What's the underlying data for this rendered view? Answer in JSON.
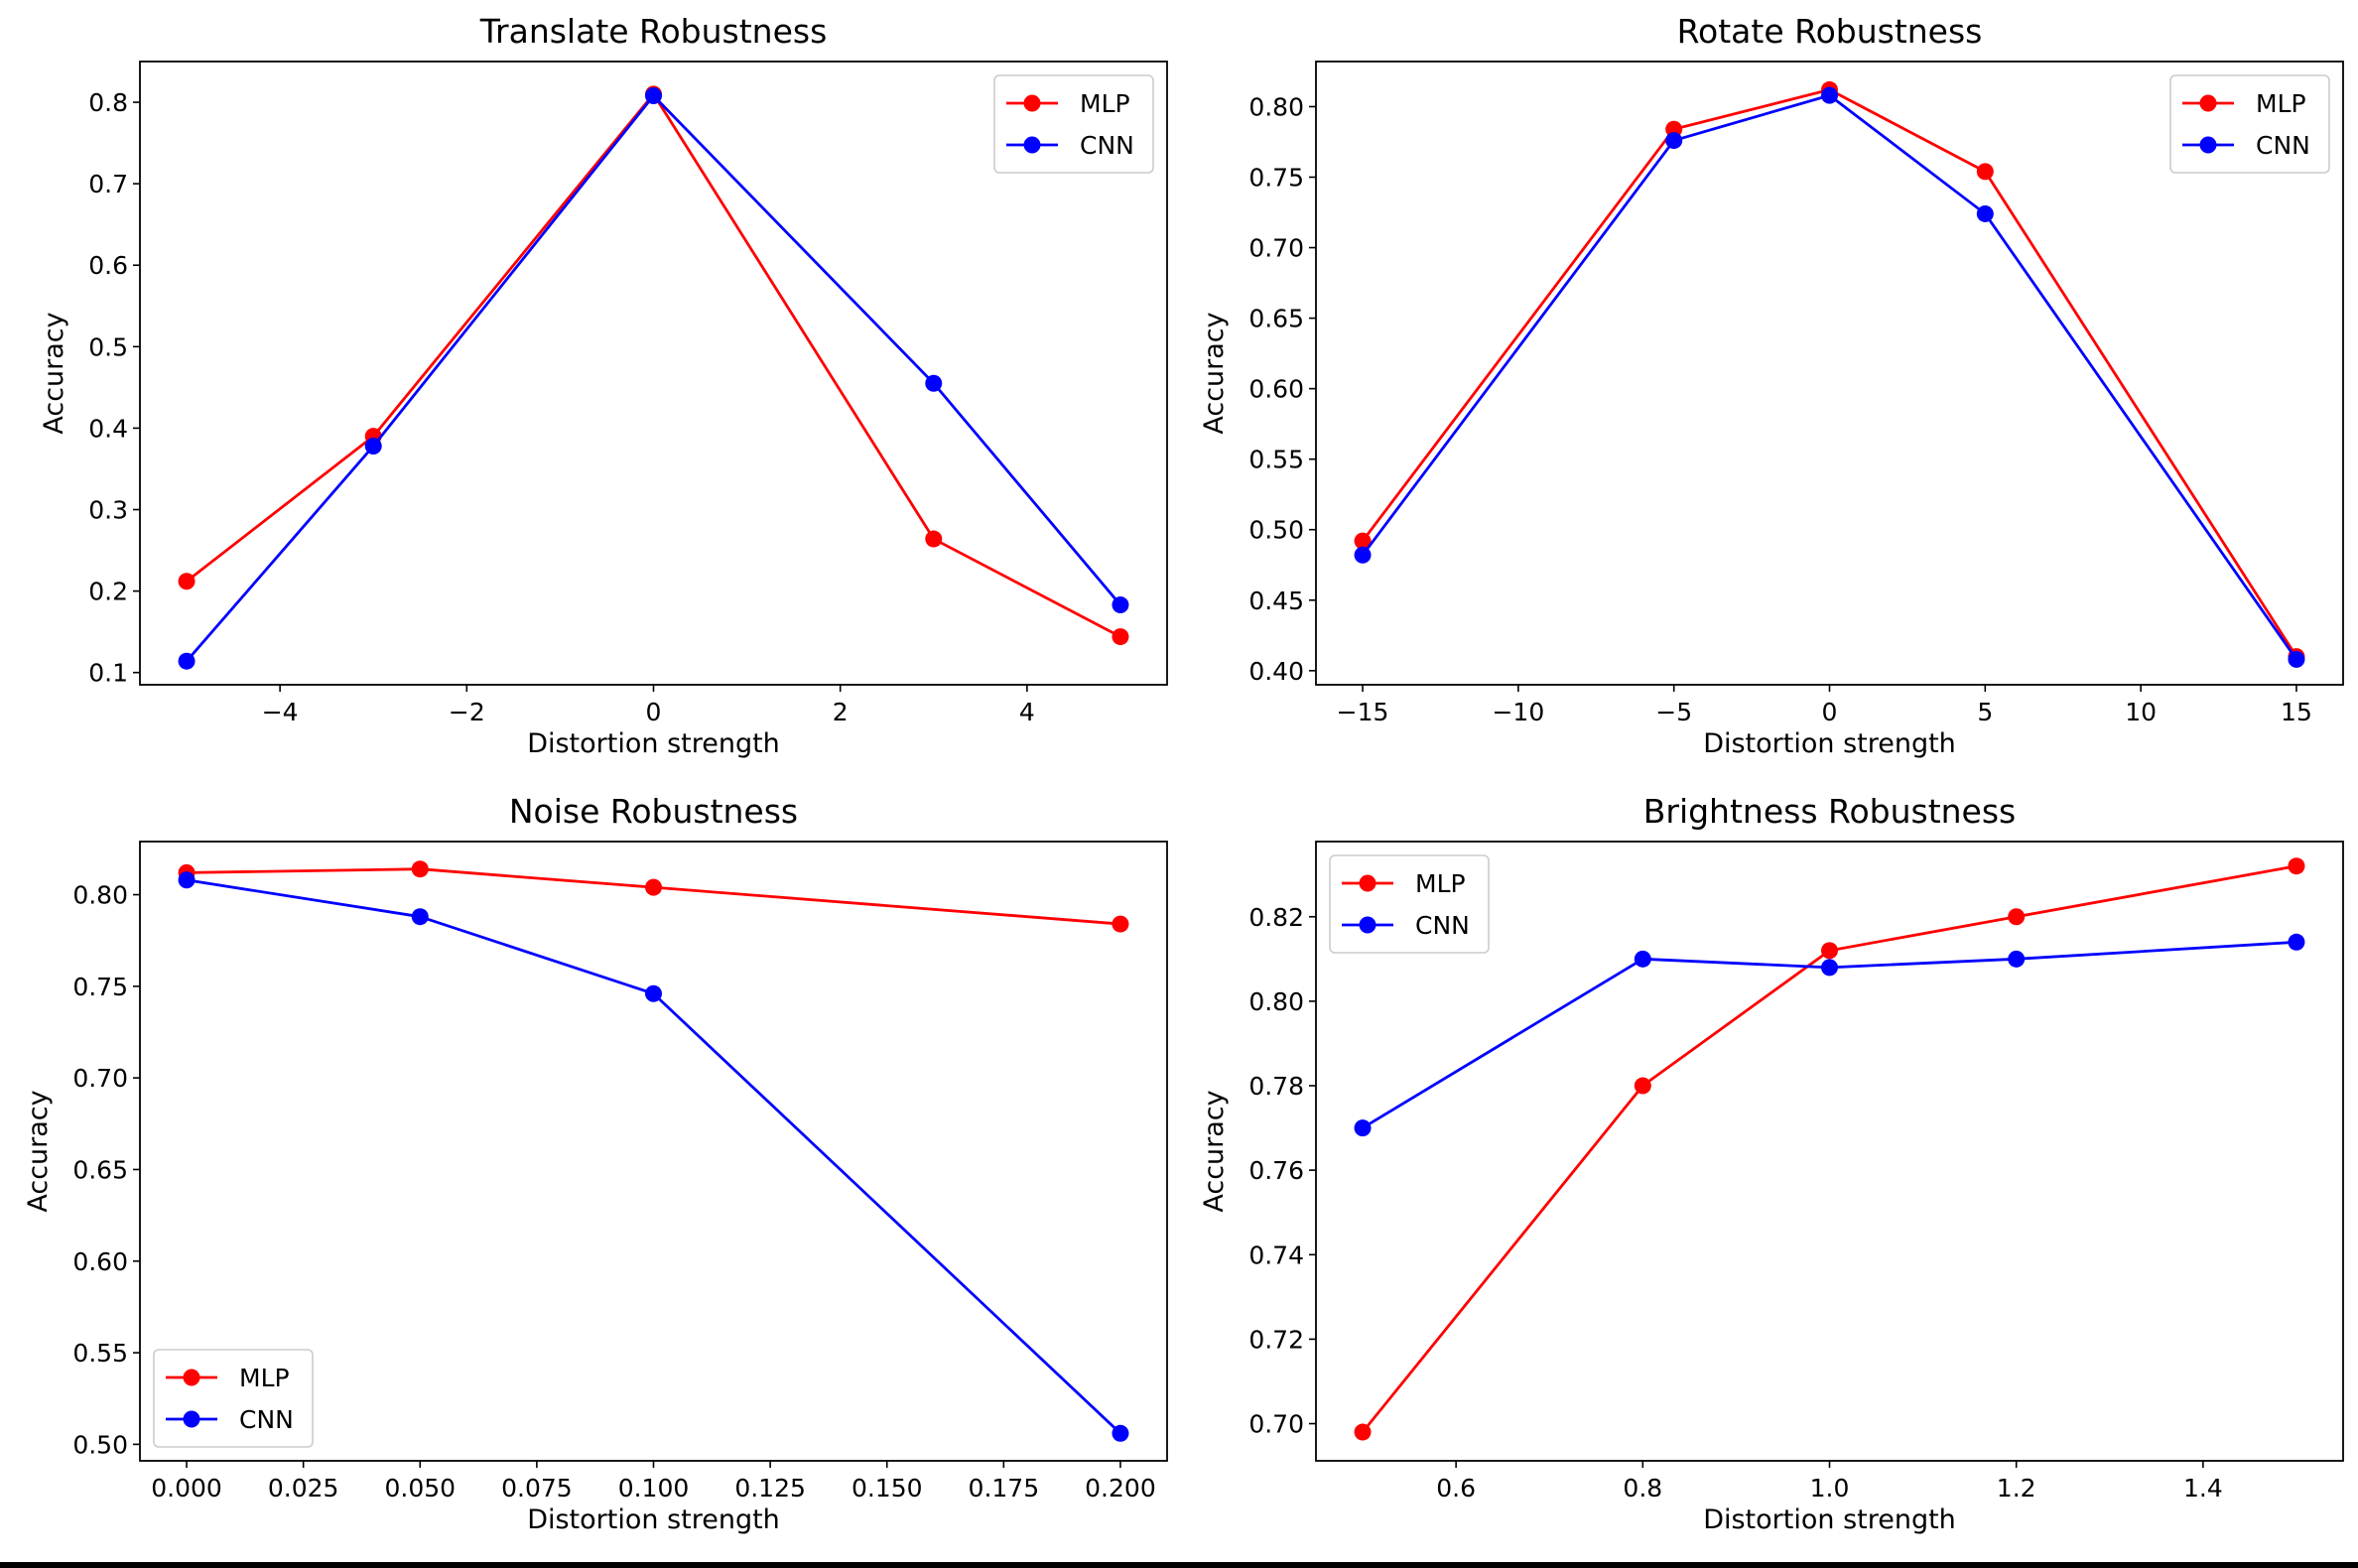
{
  "figure": {
    "background": "#ffffff"
  },
  "series_styles": {
    "MLP": {
      "color": "#ff0000"
    },
    "CNN": {
      "color": "#0000ff"
    }
  },
  "chart_data": [
    {
      "type": "line",
      "title": "Translate Robustness",
      "xlabel": "Distortion strength",
      "ylabel": "Accuracy",
      "xlim": [
        -5.5,
        5.5
      ],
      "ylim": [
        0.085,
        0.85
      ],
      "xticks": [
        -4,
        -2,
        0,
        2,
        4
      ],
      "xtick_labels": [
        "−4",
        "−2",
        "0",
        "2",
        "4"
      ],
      "yticks": [
        0.1,
        0.2,
        0.3,
        0.4,
        0.5,
        0.6,
        0.7,
        0.8
      ],
      "ytick_labels": [
        "0.1",
        "0.2",
        "0.3",
        "0.4",
        "0.5",
        "0.6",
        "0.7",
        "0.8"
      ],
      "legend": "upper right",
      "grid": false,
      "x": [
        -5,
        -3,
        0,
        3,
        5
      ],
      "series": [
        {
          "name": "MLP",
          "values": [
            0.212,
            0.39,
            0.81,
            0.264,
            0.144
          ]
        },
        {
          "name": "CNN",
          "values": [
            0.114,
            0.378,
            0.808,
            0.455,
            0.183
          ]
        }
      ]
    },
    {
      "type": "line",
      "title": "Rotate Robustness",
      "xlabel": "Distortion strength",
      "ylabel": "Accuracy",
      "xlim": [
        -16.5,
        16.5
      ],
      "ylim": [
        0.39,
        0.832
      ],
      "xticks": [
        -15,
        -10,
        -5,
        0,
        5,
        10,
        15
      ],
      "xtick_labels": [
        "−15",
        "−10",
        "−5",
        "0",
        "5",
        "10",
        "15"
      ],
      "yticks": [
        0.4,
        0.45,
        0.5,
        0.55,
        0.6,
        0.65,
        0.7,
        0.75,
        0.8
      ],
      "ytick_labels": [
        "0.40",
        "0.45",
        "0.50",
        "0.55",
        "0.60",
        "0.65",
        "0.70",
        "0.75",
        "0.80"
      ],
      "legend": "upper right",
      "grid": false,
      "x": [
        -15,
        -5,
        0,
        5,
        15
      ],
      "series": [
        {
          "name": "MLP",
          "values": [
            0.492,
            0.784,
            0.812,
            0.754,
            0.41
          ]
        },
        {
          "name": "CNN",
          "values": [
            0.482,
            0.776,
            0.808,
            0.724,
            0.408
          ]
        }
      ]
    },
    {
      "type": "line",
      "title": "Noise Robustness",
      "xlabel": "Distortion strength",
      "ylabel": "Accuracy",
      "xlim": [
        -0.01,
        0.21
      ],
      "ylim": [
        0.491,
        0.829
      ],
      "xticks": [
        0.0,
        0.025,
        0.05,
        0.075,
        0.1,
        0.125,
        0.15,
        0.175,
        0.2
      ],
      "xtick_labels": [
        "0.000",
        "0.025",
        "0.050",
        "0.075",
        "0.100",
        "0.125",
        "0.150",
        "0.175",
        "0.200"
      ],
      "yticks": [
        0.5,
        0.55,
        0.6,
        0.65,
        0.7,
        0.75,
        0.8
      ],
      "ytick_labels": [
        "0.50",
        "0.55",
        "0.60",
        "0.65",
        "0.70",
        "0.75",
        "0.80"
      ],
      "legend": "lower left",
      "grid": false,
      "x": [
        0.0,
        0.05,
        0.1,
        0.2
      ],
      "series": [
        {
          "name": "MLP",
          "values": [
            0.812,
            0.814,
            0.804,
            0.784
          ]
        },
        {
          "name": "CNN",
          "values": [
            0.808,
            0.788,
            0.746,
            0.506
          ]
        }
      ]
    },
    {
      "type": "line",
      "title": "Brightness Robustness",
      "xlabel": "Distortion strength",
      "ylabel": "Accuracy",
      "xlim": [
        0.45,
        1.55
      ],
      "ylim": [
        0.6912,
        0.8378
      ],
      "xticks": [
        0.6,
        0.8,
        1.0,
        1.2,
        1.4
      ],
      "xtick_labels": [
        "0.6",
        "0.8",
        "1.0",
        "1.2",
        "1.4"
      ],
      "yticks": [
        0.7,
        0.72,
        0.74,
        0.76,
        0.78,
        0.8,
        0.82
      ],
      "ytick_labels": [
        "0.70",
        "0.72",
        "0.74",
        "0.76",
        "0.78",
        "0.80",
        "0.82"
      ],
      "legend": "upper left",
      "grid": false,
      "x": [
        0.5,
        0.8,
        1.0,
        1.2,
        1.5
      ],
      "series": [
        {
          "name": "MLP",
          "values": [
            0.698,
            0.78,
            0.812,
            0.82,
            0.832
          ]
        },
        {
          "name": "CNN",
          "values": [
            0.77,
            0.81,
            0.808,
            0.81,
            0.814
          ]
        }
      ]
    }
  ]
}
